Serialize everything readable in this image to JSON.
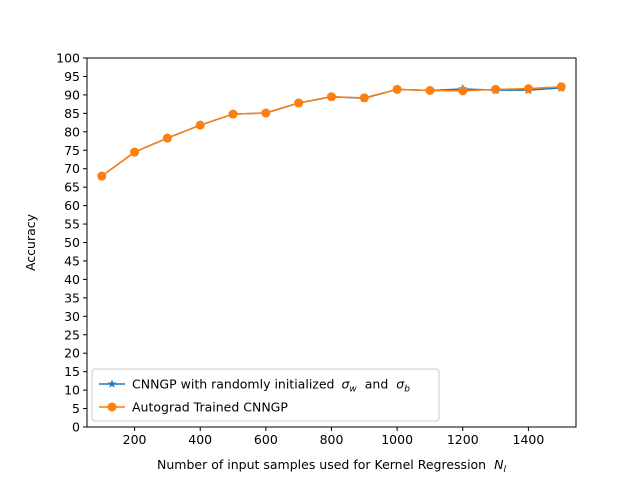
{
  "chart_data": {
    "type": "line",
    "title": "",
    "xlabel": "Number of input samples used for Kernel Regression",
    "xlabel_symbol": "N",
    "xlabel_symbol_sub": "l",
    "ylabel": "Accuracy",
    "xlim": [
      55,
      1545
    ],
    "ylim": [
      0,
      100
    ],
    "xticks": [
      200,
      400,
      600,
      800,
      1000,
      1200,
      1400
    ],
    "yticks": [
      0,
      5,
      10,
      15,
      20,
      25,
      30,
      35,
      40,
      45,
      50,
      55,
      60,
      65,
      70,
      75,
      80,
      85,
      90,
      95,
      100
    ],
    "grid": false,
    "legend_position": "lower-left",
    "x": [
      100,
      200,
      300,
      400,
      500,
      600,
      700,
      800,
      900,
      1000,
      1100,
      1200,
      1300,
      1400,
      1500
    ],
    "series": [
      {
        "name_prefix": "CNNGP with randomly initialized",
        "name_sym1": "σ",
        "name_sym1_sub": "w",
        "name_mid": "and",
        "name_sym2": "σ",
        "name_sym2_sub": "b",
        "color": "#1f77b4",
        "marker": "star",
        "values": [
          68.0,
          74.5,
          78.3,
          81.8,
          84.8,
          85.1,
          87.8,
          89.5,
          89.1,
          91.5,
          91.2,
          91.6,
          91.3,
          91.3,
          91.9
        ]
      },
      {
        "name": "Autograd Trained CNNGP",
        "color": "#ff7f0e",
        "marker": "circle",
        "values": [
          68.0,
          74.5,
          78.3,
          81.8,
          84.8,
          85.1,
          87.8,
          89.5,
          89.2,
          91.5,
          91.2,
          91.1,
          91.5,
          91.7,
          92.2
        ]
      }
    ]
  }
}
